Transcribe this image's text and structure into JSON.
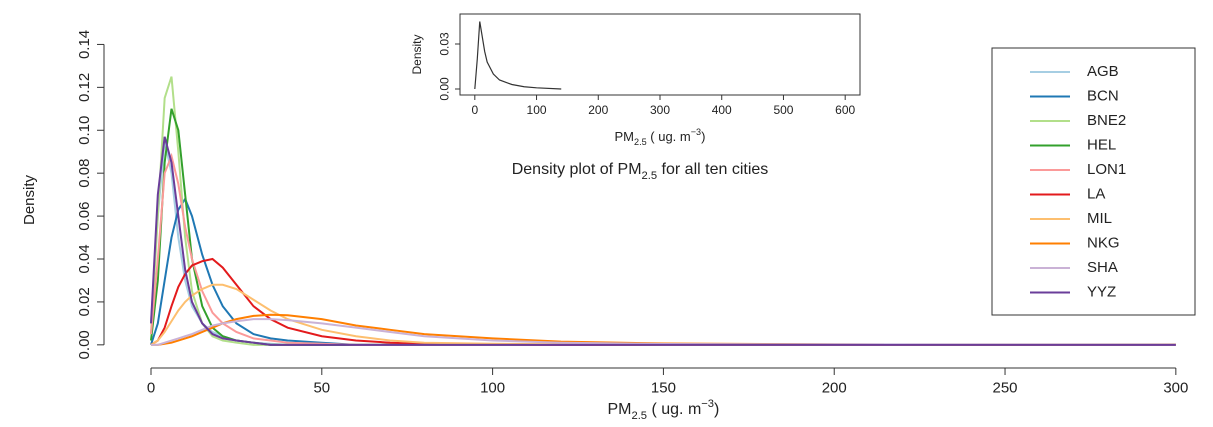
{
  "chart_data": [
    {
      "type": "line",
      "y_label": "Density",
      "x_label_parts": [
        "PM",
        "2.5",
        " ( ug. m",
        "−3",
        ")"
      ],
      "xlim": [
        -12,
        310
      ],
      "ylim": [
        -0.008,
        0.143
      ],
      "xticks": [
        0,
        50,
        100,
        150,
        200,
        250,
        300
      ],
      "yticks": [
        {
          "value": 0,
          "label": "0.00"
        },
        {
          "value": 0.02,
          "label": "0.02"
        },
        {
          "value": 0.04,
          "label": "0.04"
        },
        {
          "value": 0.06,
          "label": "0.06"
        },
        {
          "value": 0.08,
          "label": "0.08"
        },
        {
          "value": 0.1,
          "label": "0.10"
        },
        {
          "value": 0.12,
          "label": "0.12"
        },
        {
          "value": 0.14,
          "label": "0.14"
        }
      ],
      "legend": "right",
      "x": [
        0,
        2,
        4,
        6,
        8,
        10,
        12,
        15,
        18,
        21,
        25,
        30,
        35,
        40,
        50,
        60,
        70,
        80,
        100,
        120,
        150,
        200,
        250,
        300
      ],
      "series": [
        {
          "name": "AGB",
          "color": "#a6cee3",
          "values": [
            0.01,
            0.06,
            0.095,
            0.08,
            0.05,
            0.03,
            0.018,
            0.01,
            0.006,
            0.004,
            0.002,
            0.001,
            0.0005,
            0,
            0,
            0,
            0,
            0,
            0,
            0,
            0,
            0,
            0,
            0
          ]
        },
        {
          "name": "BCN",
          "color": "#1f78b4",
          "values": [
            0,
            0.01,
            0.03,
            0.05,
            0.063,
            0.068,
            0.06,
            0.042,
            0.028,
            0.018,
            0.01,
            0.005,
            0.003,
            0.002,
            0.001,
            0,
            0,
            0,
            0,
            0,
            0,
            0,
            0,
            0
          ]
        },
        {
          "name": "BNE2",
          "color": "#b2df8a",
          "values": [
            0.005,
            0.06,
            0.115,
            0.125,
            0.09,
            0.05,
            0.025,
            0.01,
            0.004,
            0.002,
            0.001,
            0,
            0,
            0,
            0,
            0,
            0,
            0,
            0,
            0,
            0,
            0,
            0,
            0
          ]
        },
        {
          "name": "HEL",
          "color": "#33a02c",
          "values": [
            0.002,
            0.03,
            0.085,
            0.11,
            0.1,
            0.07,
            0.04,
            0.018,
            0.008,
            0.004,
            0.002,
            0.001,
            0,
            0,
            0,
            0,
            0,
            0,
            0,
            0,
            0,
            0,
            0,
            0
          ]
        },
        {
          "name": "LON1",
          "color": "#fb9a99",
          "values": [
            0.005,
            0.04,
            0.08,
            0.088,
            0.075,
            0.055,
            0.04,
            0.025,
            0.015,
            0.01,
            0.006,
            0.003,
            0.002,
            0.001,
            0.0005,
            0,
            0,
            0,
            0,
            0,
            0,
            0,
            0,
            0
          ]
        },
        {
          "name": "LA",
          "color": "#e31a1c",
          "values": [
            0,
            0.002,
            0.008,
            0.018,
            0.027,
            0.033,
            0.037,
            0.039,
            0.04,
            0.036,
            0.028,
            0.018,
            0.012,
            0.008,
            0.004,
            0.002,
            0.001,
            0.0005,
            0.0002,
            0,
            0,
            0,
            0,
            0
          ]
        },
        {
          "name": "MIL",
          "color": "#fdbf6f",
          "values": [
            0,
            0.002,
            0.006,
            0.011,
            0.016,
            0.02,
            0.023,
            0.026,
            0.028,
            0.028,
            0.026,
            0.021,
            0.016,
            0.012,
            0.007,
            0.004,
            0.002,
            0.001,
            0.0005,
            0.0002,
            0,
            0,
            0,
            0
          ]
        },
        {
          "name": "NKG",
          "color": "#ff7f00",
          "values": [
            0,
            0,
            0.0005,
            0.001,
            0.002,
            0.003,
            0.004,
            0.006,
            0.008,
            0.01,
            0.012,
            0.0135,
            0.014,
            0.0138,
            0.012,
            0.009,
            0.007,
            0.005,
            0.003,
            0.0015,
            0.0006,
            0.0002,
            0,
            0
          ]
        },
        {
          "name": "SHA",
          "color": "#cab2d6",
          "values": [
            0,
            0,
            0.001,
            0.002,
            0.003,
            0.004,
            0.005,
            0.007,
            0.009,
            0.01,
            0.011,
            0.012,
            0.012,
            0.0115,
            0.01,
            0.008,
            0.006,
            0.004,
            0.002,
            0.001,
            0.0004,
            0.0002,
            0.0001,
            0
          ]
        },
        {
          "name": "YYZ",
          "color": "#6a3d9a",
          "values": [
            0.01,
            0.07,
            0.097,
            0.085,
            0.06,
            0.035,
            0.02,
            0.01,
            0.005,
            0.003,
            0.002,
            0.001,
            0,
            0,
            0,
            0,
            0,
            0,
            0,
            0,
            0,
            0,
            0,
            0
          ]
        }
      ]
    },
    {
      "type": "line",
      "title_parts": [
        "Density plot of PM",
        "2.5",
        " for all ten cities"
      ],
      "y_label": "Density",
      "x_label_parts": [
        "PM",
        "2.5",
        " ( ug. m",
        "−3",
        ")"
      ],
      "xlim": [
        -24,
        624
      ],
      "ylim": [
        -0.004,
        0.05
      ],
      "xticks": [
        0,
        100,
        200,
        300,
        400,
        500,
        600
      ],
      "yticks": [
        {
          "value": 0,
          "label": "0.00"
        },
        {
          "value": 0.03,
          "label": "0.03"
        }
      ],
      "x": [
        0,
        4,
        8,
        12,
        16,
        20,
        30,
        40,
        60,
        80,
        100,
        140
      ],
      "series": [
        {
          "color": "#333333",
          "values": [
            0,
            0.02,
            0.045,
            0.035,
            0.025,
            0.018,
            0.01,
            0.006,
            0.003,
            0.0015,
            0.0008,
            0
          ]
        }
      ]
    }
  ]
}
